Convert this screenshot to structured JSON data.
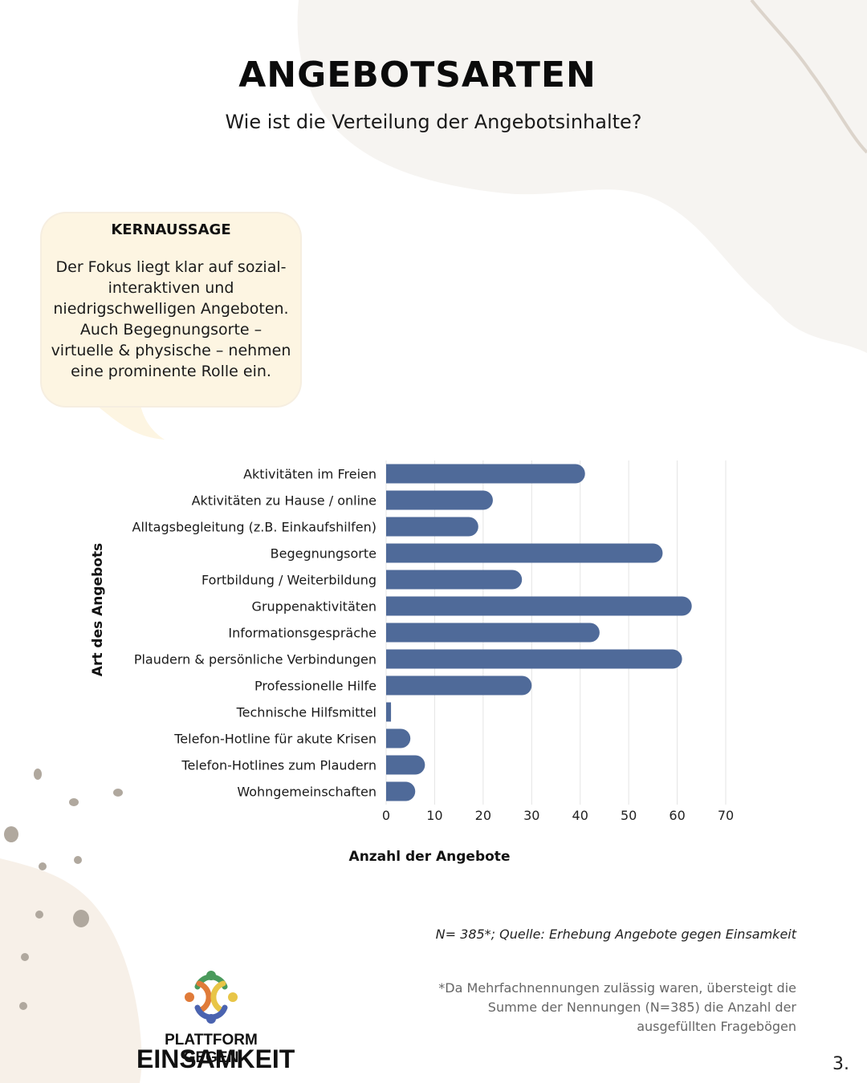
{
  "header": {
    "title": "ANGEBOTSARTEN",
    "subtitle": "Wie ist die Verteilung der Angebotsinhalte?"
  },
  "callout": {
    "heading": "KERNAUSSAGE",
    "body": "Der Fokus liegt klar auf sozial-interaktiven und niedrigschwelligen Angeboten. Auch Begegnungsorte – virtuelle & physische – nehmen eine prominente Rolle ein."
  },
  "chart_data": {
    "type": "bar",
    "orientation": "horizontal",
    "categories": [
      "Aktivitäten im Freien",
      "Aktivitäten zu Hause / online",
      "Alltagsbegleitung (z.B. Einkaufshilfen)",
      "Begegnungsorte",
      "Fortbildung / Weiterbildung",
      "Gruppenaktivitäten",
      "Informationsgespräche",
      "Plaudern & persönliche Verbindungen",
      "Professionelle Hilfe",
      "Technische Hilfsmittel",
      "Telefon-Hotline für akute Krisen",
      "Telefon-Hotlines zum Plaudern",
      "Wohngemeinschaften"
    ],
    "values": [
      41,
      22,
      19,
      57,
      28,
      63,
      44,
      61,
      30,
      1,
      5,
      8,
      6
    ],
    "xlabel": "Anzahl der Angebote",
    "ylabel": "Art des Angebots",
    "xlim": [
      0,
      70
    ],
    "xticks": [
      0,
      10,
      20,
      30,
      40,
      50,
      60,
      70
    ],
    "grid": "vertical",
    "bar_color": "#4f6a99"
  },
  "notes": {
    "source": "N= 385*; Quelle: Erhebung Angebote gegen Einsamkeit",
    "footnote": "*Da Mehrfachnennungen zulässig waren, übersteigt die Summe der Nennungen (N=385) die Anzahl der ausgefüllten Fragebögen",
    "page_number": "3."
  },
  "logo": {
    "line1": "PLATTFORM GEGEN",
    "line2": "EINSAMKEIT"
  }
}
